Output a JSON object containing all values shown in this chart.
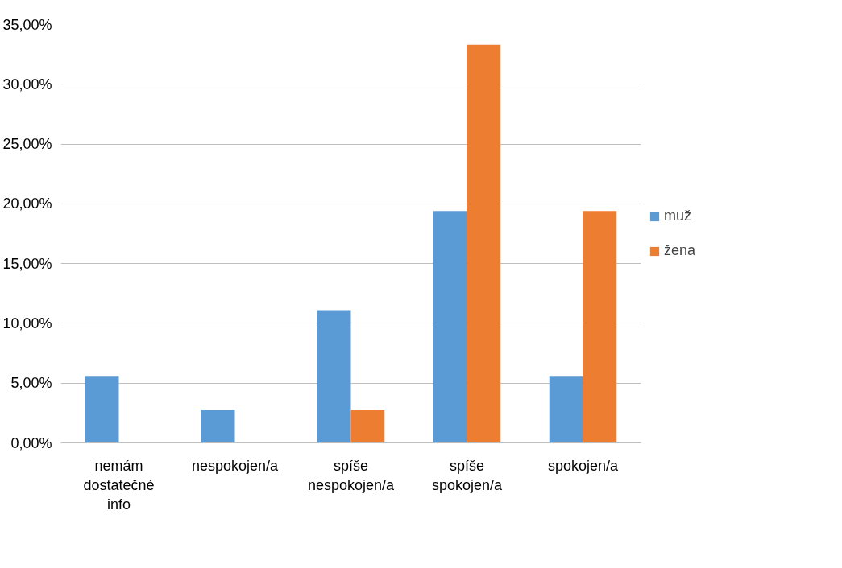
{
  "chart_data": {
    "type": "bar",
    "categories": [
      "nemám dostatečné info",
      "nespokojen/a",
      "spíše nespokojen/a",
      "spíše spokojen/a",
      "spokojen/a"
    ],
    "series": [
      {
        "name": "muž",
        "color": "#5b9bd5",
        "values": [
          5.6,
          2.8,
          11.1,
          19.4,
          5.6
        ]
      },
      {
        "name": "žena",
        "color": "#ed7d31",
        "values": [
          0,
          0,
          2.8,
          33.3,
          19.4
        ]
      }
    ],
    "ylim": [
      0,
      35
    ],
    "yticks": [
      {
        "value": 0,
        "label": "0,00%"
      },
      {
        "value": 5,
        "label": "5,00%"
      },
      {
        "value": 10,
        "label": "10,00%"
      },
      {
        "value": 15,
        "label": "15,00%"
      },
      {
        "value": 20,
        "label": "20,00%"
      },
      {
        "value": 25,
        "label": "25,00%"
      },
      {
        "value": 30,
        "label": "30,00%"
      },
      {
        "value": 35,
        "label": "35,00%"
      }
    ],
    "grid": "y",
    "legend": "right"
  }
}
